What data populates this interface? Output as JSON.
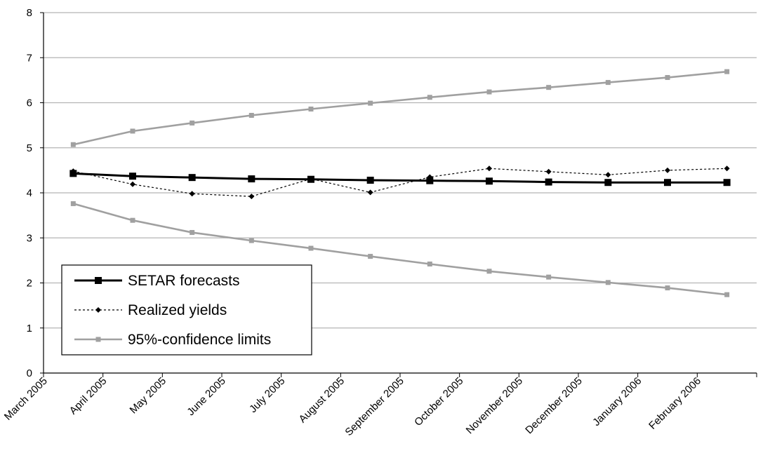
{
  "chart_data": {
    "type": "line",
    "title": "",
    "xlabel": "",
    "ylabel": "",
    "ylim": [
      0,
      8
    ],
    "yticks": [
      "0",
      "1",
      "2",
      "3",
      "4",
      "5",
      "6",
      "7",
      "8"
    ],
    "grid": "horizontal",
    "legend_position": "bottom-left",
    "categories": [
      "March 2005",
      "April 2005",
      "May 2005",
      "June 2005",
      "July 2005",
      "August 2005",
      "September 2005",
      "October 2005",
      "November 2005",
      "December 2005",
      "January 2006",
      "February 2006"
    ],
    "series": [
      {
        "name": "SETAR forecasts",
        "style": "solid",
        "color": "#000000",
        "marker": "square",
        "values": [
          4.43,
          4.37,
          4.34,
          4.31,
          4.3,
          4.28,
          4.27,
          4.26,
          4.24,
          4.23,
          4.23,
          4.23
        ]
      },
      {
        "name": "Realized yields",
        "style": "dashed",
        "color": "#000000",
        "marker": "diamond",
        "values": [
          4.48,
          4.19,
          3.98,
          3.92,
          4.31,
          4.01,
          4.35,
          4.54,
          4.47,
          4.4,
          4.5,
          4.54
        ]
      },
      {
        "name": "95%-confidence limits",
        "style": "solid",
        "color": "#a0a0a0",
        "marker": "square",
        "values": [
          5.07,
          5.37,
          5.55,
          5.72,
          5.86,
          5.99,
          6.12,
          6.24,
          6.34,
          6.45,
          6.56,
          6.69
        ]
      },
      {
        "name": "",
        "style": "solid",
        "color": "#a0a0a0",
        "marker": "square",
        "values": [
          3.76,
          3.39,
          3.12,
          2.94,
          2.77,
          2.59,
          2.42,
          2.26,
          2.13,
          2.01,
          1.89,
          1.74
        ]
      }
    ]
  }
}
